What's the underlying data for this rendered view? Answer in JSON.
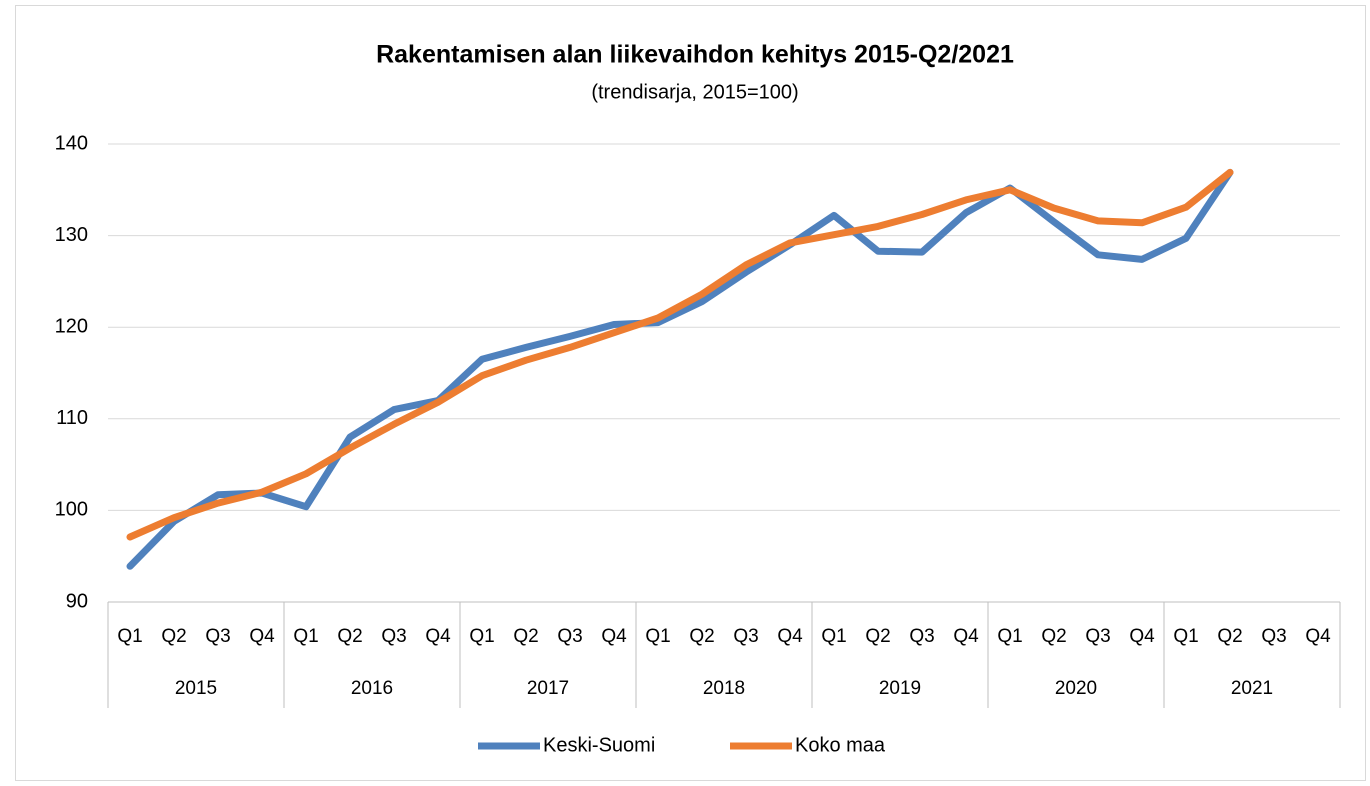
{
  "chart_data": {
    "type": "line",
    "title": "Rakentamisen alan liikevaihdon kehitys 2015-Q2/2021",
    "subtitle": "(trendisarja, 2015=100)",
    "categories": [
      "Q1",
      "Q2",
      "Q3",
      "Q4",
      "Q1",
      "Q2",
      "Q3",
      "Q4",
      "Q1",
      "Q2",
      "Q3",
      "Q4",
      "Q1",
      "Q2",
      "Q3",
      "Q4",
      "Q1",
      "Q2",
      "Q3",
      "Q4",
      "Q1",
      "Q2",
      "Q3",
      "Q4",
      "Q1",
      "Q2",
      "Q3",
      "Q4"
    ],
    "groups": [
      "2015",
      "2016",
      "2017",
      "2018",
      "2019",
      "2020",
      "2021"
    ],
    "series": [
      {
        "name": "Keski-Suomi",
        "color": "#4f81bd",
        "values": [
          93.9,
          98.8,
          101.7,
          101.9,
          100.4,
          108,
          111,
          112,
          116.5,
          117.8,
          119,
          120.3,
          120.5,
          122.8,
          126,
          129,
          132.2,
          128.3,
          128.2,
          132.5,
          135.2,
          131.5,
          127.9,
          127.4,
          129.7,
          136.9,
          null,
          null
        ]
      },
      {
        "name": "Koko maa",
        "color": "#ed7d31",
        "values": [
          97.1,
          99.2,
          100.8,
          102,
          104,
          106.8,
          109.4,
          111.8,
          114.7,
          116.4,
          117.8,
          119.4,
          121,
          123.6,
          126.8,
          129.2,
          130.1,
          131,
          132.3,
          133.9,
          135,
          133,
          131.6,
          131.4,
          133.1,
          136.9,
          null,
          null
        ]
      }
    ],
    "ylim": [
      90,
      140
    ],
    "yticks": [
      90,
      100,
      110,
      120,
      130,
      140
    ],
    "grid": true,
    "legend": "bottom"
  }
}
